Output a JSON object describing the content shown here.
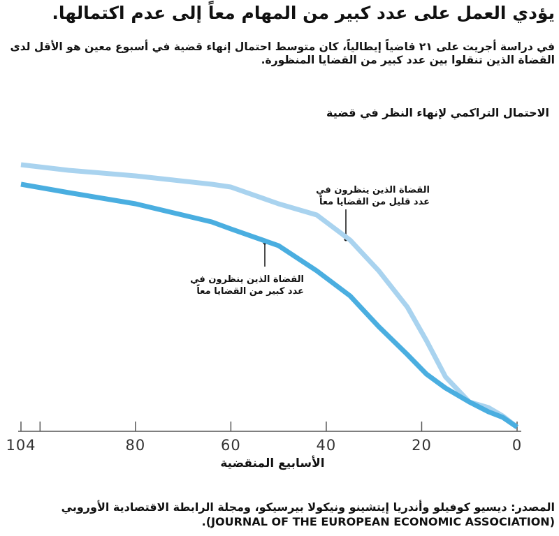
{
  "chart_data": {
    "type": "line",
    "title": "يؤدي العمل على عدد كبير من المهام معاً إلى عدم اكتمالها.",
    "subtitle": "في دراسة أجريت على ٢١ قاضياً إيطالياً، كان متوسط احتمال إنهاء قضية في أسبوع معين هو الأقل لدى القضاة الذين تنقلوا بين عدد كبير من القضايا المنظورة.",
    "y_label": "الاحتمال التراكمي لإنهاء النظر في قضية",
    "x_label": "الأسابيع المنقضية",
    "source": "المصدر: ديسيو كوفيلو وأندريا إيتشينو ونيكولا بيرسيكو، ومجلة الرابطة الاقتصادية الأوروبي (JOURNAL OF THE EUROPEAN ECONOMIC ASSOCIATION).",
    "x": [
      104,
      94,
      80,
      64,
      60,
      50,
      42,
      35,
      29,
      23,
      19,
      15,
      10,
      6,
      3,
      0
    ],
    "xlim": [
      104,
      0
    ],
    "xticks": [
      104,
      {
        "value": 100,
        "label": null
      },
      80,
      60,
      40,
      20,
      0
    ],
    "ylim": [
      0,
      1
    ],
    "series": [
      {
        "name": "القضاة الذين ينظرون في عدد قليل من القضايا معاً",
        "color": "#a9d3ef",
        "values": [
          0.94,
          0.92,
          0.9,
          0.87,
          0.86,
          0.8,
          0.76,
          0.67,
          0.56,
          0.43,
          0.31,
          0.18,
          0.09,
          0.07,
          0.04,
          0
        ]
      },
      {
        "name": "القضاة الذين ينظرون في عدد كبير من القضايا معاً",
        "color": "#4aaee0",
        "values": [
          0.87,
          0.84,
          0.8,
          0.735,
          0.71,
          0.65,
          0.56,
          0.47,
          0.36,
          0.26,
          0.19,
          0.14,
          0.09,
          0.055,
          0.035,
          0
        ]
      }
    ]
  }
}
